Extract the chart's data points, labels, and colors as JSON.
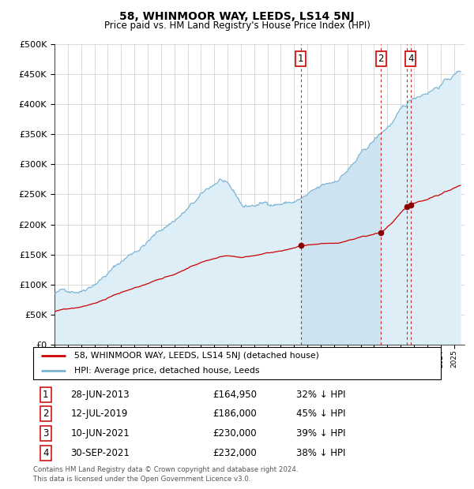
{
  "title": "58, WHINMOOR WAY, LEEDS, LS14 5NJ",
  "subtitle": "Price paid vs. HM Land Registry's House Price Index (HPI)",
  "legend_line1": "58, WHINMOOR WAY, LEEDS, LS14 5NJ (detached house)",
  "legend_line2": "HPI: Average price, detached house, Leeds",
  "footer1": "Contains HM Land Registry data © Crown copyright and database right 2024.",
  "footer2": "This data is licensed under the Open Government Licence v3.0.",
  "transactions": [
    {
      "id": 1,
      "date": "28-JUN-2013",
      "price": 164950,
      "pct": "32% ↓ HPI",
      "year": 2013.49
    },
    {
      "id": 2,
      "date": "12-JUL-2019",
      "price": 186000,
      "pct": "45% ↓ HPI",
      "year": 2019.53
    },
    {
      "id": 3,
      "date": "10-JUN-2021",
      "price": 230000,
      "pct": "39% ↓ HPI",
      "year": 2021.44
    },
    {
      "id": 4,
      "date": "30-SEP-2021",
      "price": 232000,
      "pct": "38% ↓ HPI",
      "year": 2021.75
    }
  ],
  "hpi_color": "#7ab3d4",
  "hpi_fill_color": "#ddeef7",
  "price_color": "#cc0000",
  "marker_color": "#8b0000",
  "dashed_line_color": "#cc0000",
  "background_color": "#ffffff",
  "grid_color": "#cccccc",
  "ylim": [
    0,
    500000
  ],
  "xlim_start": 1995,
  "xlim_end": 2025.8
}
